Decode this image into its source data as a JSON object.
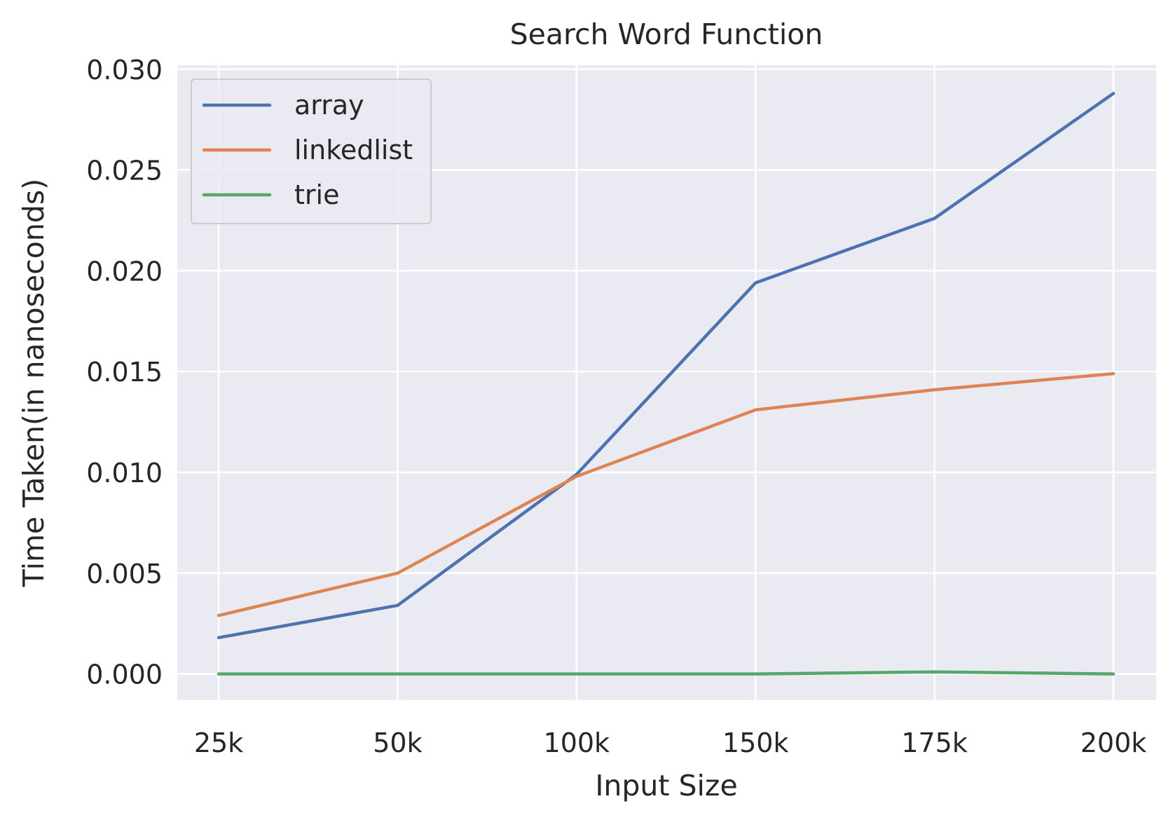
{
  "chart_data": {
    "type": "line",
    "title": "Search Word Function",
    "xlabel": "Input Size",
    "ylabel": "Time Taken(in nanoseconds)",
    "categories": [
      "25k",
      "50k",
      "100k",
      "150k",
      "175k",
      "200k"
    ],
    "ylim": [
      -0.0013,
      0.0302
    ],
    "yticks": [
      0.0,
      0.005,
      0.01,
      0.015,
      0.02,
      0.025,
      0.03
    ],
    "ytick_labels": [
      "0.000",
      "0.005",
      "0.010",
      "0.015",
      "0.020",
      "0.025",
      "0.030"
    ],
    "grid": true,
    "legend_position": "top-left",
    "series": [
      {
        "name": "array",
        "color": "#4c72b0",
        "values": [
          0.0018,
          0.0034,
          0.0099,
          0.0194,
          0.0226,
          0.0288
        ]
      },
      {
        "name": "linkedlist",
        "color": "#dd8452",
        "values": [
          0.0029,
          0.005,
          0.0098,
          0.0131,
          0.0141,
          0.0149
        ]
      },
      {
        "name": "trie",
        "color": "#55a868",
        "values": [
          0.0,
          0.0,
          0.0,
          0.0,
          0.0001,
          0.0
        ]
      }
    ]
  },
  "theme": {
    "plot_background": "#eaeaf2",
    "grid_color": "#ffffff",
    "text_color": "#262626"
  }
}
